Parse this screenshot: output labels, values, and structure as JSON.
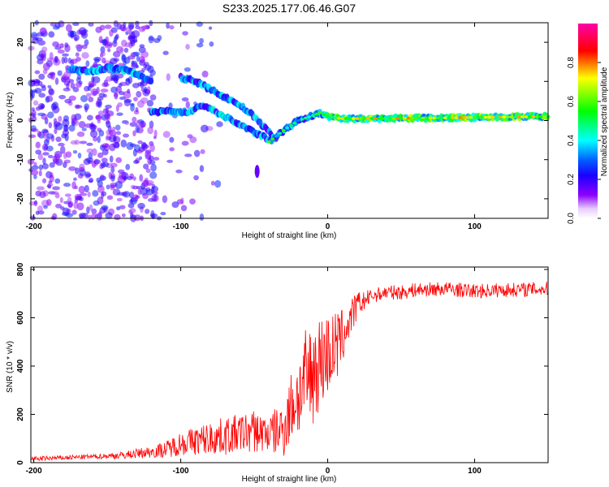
{
  "title": "S233.2025.177.06.46.G07",
  "chart_data": [
    {
      "type": "heatmap",
      "xlabel": "Height of straight line (km)",
      "ylabel": "Frequency (Hz)",
      "xlim": [
        -202,
        150
      ],
      "ylim": [
        -25,
        25
      ],
      "xticks": [
        -200,
        -100,
        0,
        100
      ],
      "yticks": [
        -20,
        -10,
        0,
        10,
        20
      ],
      "grid": false,
      "colorbar": {
        "label": "Normalized spectral amplitude",
        "range": [
          0,
          1
        ],
        "ticks": [
          "0.0",
          "0.2",
          "0.4",
          "0.6",
          "0.8"
        ],
        "colormap": [
          "#ffffff",
          "#8c00ff",
          "#0000ff",
          "#00ffff",
          "#00ff00",
          "#ffff00",
          "#ff0000",
          "#ff00aa"
        ]
      },
      "tracks": [
        {
          "x": [
            -175,
            -160,
            -150,
            -140,
            -130,
            -120
          ],
          "y": [
            13,
            12.5,
            13.5,
            13,
            12,
            10
          ]
        },
        {
          "x": [
            -120,
            -105,
            -95,
            -85,
            -75,
            -65,
            -55,
            -45,
            -38
          ],
          "y": [
            2,
            2.5,
            2,
            4,
            2,
            0,
            -2,
            -4,
            -5
          ]
        },
        {
          "x": [
            -100,
            -90,
            -80,
            -70,
            -60,
            -50,
            -45,
            -40,
            -35
          ],
          "y": [
            11,
            10,
            8,
            6,
            4,
            1,
            -1,
            -3,
            -5
          ]
        },
        {
          "x": [
            -35,
            -28,
            -20,
            -12,
            -5,
            0,
            10,
            20,
            40,
            60,
            80,
            100,
            120,
            150
          ],
          "y": [
            -4,
            -2,
            0,
            1,
            2,
            1,
            0.5,
            0.5,
            0.5,
            0.6,
            0.7,
            0.8,
            0.9,
            1
          ]
        }
      ]
    },
    {
      "type": "line",
      "xlabel": "Height of straight line (km)",
      "ylabel": "SNR (10 * v/v)",
      "xlim": [
        -202,
        150
      ],
      "ylim": [
        0,
        810
      ],
      "xticks": [
        -200,
        -100,
        0,
        100
      ],
      "yticks": [
        0,
        200,
        400,
        600,
        800
      ],
      "grid": false,
      "series": [
        {
          "color": "#ff0000",
          "x": [
            -202,
            -180,
            -160,
            -140,
            -120,
            -110,
            -100,
            -90,
            -80,
            -70,
            -60,
            -50,
            -40,
            -30,
            -25,
            -20,
            -15,
            -10,
            -5,
            0,
            5,
            10,
            15,
            20,
            25,
            30,
            40,
            50,
            60,
            80,
            100,
            120,
            150
          ],
          "values": [
            15,
            20,
            25,
            30,
            45,
            55,
            80,
            90,
            100,
            110,
            120,
            130,
            120,
            140,
            230,
            280,
            330,
            380,
            420,
            450,
            470,
            520,
            590,
            650,
            670,
            690,
            705,
            705,
            715,
            720,
            710,
            715,
            720
          ],
          "noise": [
            10,
            10,
            10,
            15,
            25,
            35,
            50,
            60,
            70,
            80,
            80,
            90,
            80,
            120,
            150,
            180,
            220,
            220,
            200,
            180,
            160,
            120,
            80,
            60,
            40,
            30,
            30,
            30,
            30,
            30,
            30,
            30,
            30
          ]
        }
      ]
    }
  ]
}
